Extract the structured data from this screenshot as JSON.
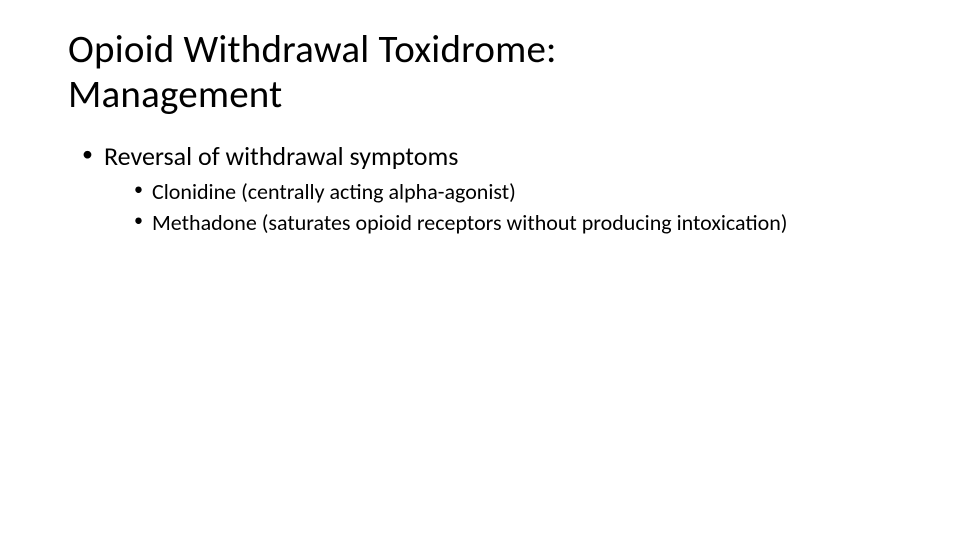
{
  "slide": {
    "title": "Opioid Withdrawal Toxidrome: Management",
    "bullets": {
      "level1_item0": "Reversal of withdrawal symptoms",
      "level2": {
        "item0": "Clonidine (centrally acting alpha-agonist)",
        "item1": "Methadone (saturates opioid receptors without producing intoxication)"
      }
    },
    "styling": {
      "background_color": "#ffffff",
      "text_color": "#000000",
      "title_fontsize_pt": 30,
      "level1_fontsize_pt": 20,
      "level2_fontsize_pt": 17,
      "font_family": "Calibri"
    }
  }
}
